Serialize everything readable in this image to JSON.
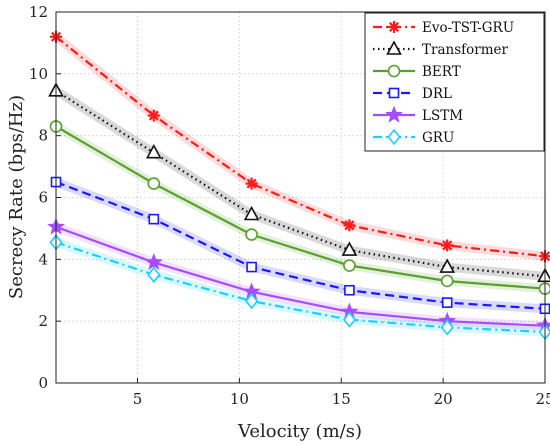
{
  "chart_data": {
    "type": "line",
    "title": "",
    "xlabel": "Velocity (m/s)",
    "ylabel": "Secrecy Rate (bps/Hz)",
    "xlim": [
      1,
      25
    ],
    "ylim": [
      0,
      12
    ],
    "xticks": [
      5,
      10,
      15,
      20,
      25
    ],
    "yticks": [
      0,
      2,
      4,
      6,
      8,
      10,
      12
    ],
    "grid": true,
    "legend_position": "top-right",
    "x": [
      1,
      5.8,
      10.6,
      15.4,
      20.2,
      25
    ],
    "series": [
      {
        "name": "Evo-TST-GRU",
        "color": "#ff1a1a",
        "dash": "dashdot",
        "marker": "asterisk",
        "values": [
          11.2,
          8.65,
          6.45,
          5.1,
          4.45,
          4.1
        ]
      },
      {
        "name": "Transformer",
        "color": "#111111",
        "dash": "dotted",
        "marker": "triangle",
        "values": [
          9.45,
          7.45,
          5.45,
          4.3,
          3.75,
          3.45
        ]
      },
      {
        "name": "BERT",
        "color": "#5aa02c",
        "dash": "solid",
        "marker": "circle",
        "values": [
          8.3,
          6.45,
          4.8,
          3.8,
          3.3,
          3.05
        ]
      },
      {
        "name": "DRL",
        "color": "#1a1aff",
        "dash": "dashed",
        "marker": "square",
        "values": [
          6.5,
          5.3,
          3.75,
          3.0,
          2.6,
          2.4
        ]
      },
      {
        "name": "LSTM",
        "color": "#a64dff",
        "dash": "solid",
        "marker": "star",
        "values": [
          5.05,
          3.9,
          2.95,
          2.3,
          2.0,
          1.85
        ]
      },
      {
        "name": "GRU",
        "color": "#1ad1ff",
        "dash": "dashdot",
        "marker": "diamond",
        "values": [
          4.55,
          3.5,
          2.65,
          2.05,
          1.8,
          1.65
        ]
      }
    ]
  }
}
